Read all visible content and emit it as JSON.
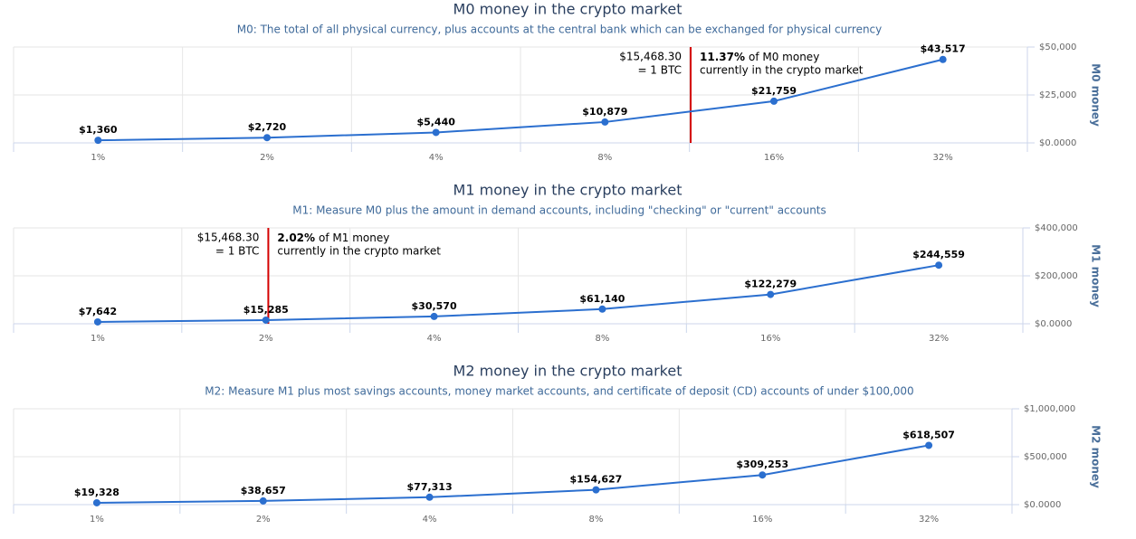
{
  "chart_data": [
    {
      "type": "line",
      "title": "M0 money in the crypto market",
      "subtitle": "M0: The total of all physical currency, plus accounts at the central bank which can be exchanged for physical currency",
      "categories": [
        "1%",
        "2%",
        "4%",
        "8%",
        "16%",
        "32%"
      ],
      "values": [
        1360,
        2720,
        5440,
        10879,
        21759,
        43517
      ],
      "value_labels": [
        "$1,360",
        "$2,720",
        "$5,440",
        "$10,879",
        "$21,759",
        "$43,517"
      ],
      "color": "#2b6fcf",
      "y_label": "M0 money",
      "ylim": [
        0,
        50000
      ],
      "yticks": [
        {
          "value": 0,
          "label": "$0.0000"
        },
        {
          "value": 25000,
          "label": "$25,000"
        },
        {
          "value": 50000,
          "label": "$50,000"
        }
      ],
      "grid": true,
      "plot_line": {
        "value": 11.37,
        "value_label": "11.37%",
        "text": [
          "of M0 money",
          "currently in the crypto market"
        ],
        "price_label": [
          "$15,468.30",
          "= 1 BTC"
        ],
        "color": "#d40000"
      }
    },
    {
      "type": "line",
      "title": "M1 money in the crypto market",
      "subtitle": "M1: Measure M0 plus the amount in demand accounts, including \"checking\" or \"current\" accounts",
      "categories": [
        "1%",
        "2%",
        "4%",
        "8%",
        "16%",
        "32%"
      ],
      "values": [
        7642,
        15285,
        30570,
        61140,
        122279,
        244559
      ],
      "value_labels": [
        "$7,642",
        "$15,285",
        "$30,570",
        "$61,140",
        "$122,279",
        "$244,559"
      ],
      "color": "#2b6fcf",
      "y_label": "M1 money",
      "ylim": [
        0,
        400000
      ],
      "yticks": [
        {
          "value": 0,
          "label": "$0.0000"
        },
        {
          "value": 200000,
          "label": "$200,000"
        },
        {
          "value": 400000,
          "label": "$400,000"
        }
      ],
      "grid": true,
      "plot_line": {
        "value": 2.02,
        "value_label": "2.02%",
        "text": [
          "of M1 money",
          "currently in the crypto market"
        ],
        "price_label": [
          "$15,468.30",
          "= 1 BTC"
        ],
        "color": "#d40000"
      }
    },
    {
      "type": "line",
      "title": "M2 money in the crypto market",
      "subtitle": "M2: Measure M1 plus most savings accounts, money market accounts, and certificate of deposit (CD) accounts of under $100,000",
      "categories": [
        "1%",
        "2%",
        "4%",
        "8%",
        "16%",
        "32%"
      ],
      "values": [
        19328,
        38657,
        77313,
        154627,
        309253,
        618507
      ],
      "value_labels": [
        "$19,328",
        "$38,657",
        "$77,313",
        "$154,627",
        "$309,253",
        "$618,507"
      ],
      "color": "#2b6fcf",
      "y_label": "M2 money",
      "ylim": [
        0,
        1000000
      ],
      "yticks": [
        {
          "value": 0,
          "label": "$0.0000"
        },
        {
          "value": 500000,
          "label": "$500,000"
        },
        {
          "value": 1000000,
          "label": "$1,000,000"
        }
      ],
      "grid": true
    }
  ]
}
